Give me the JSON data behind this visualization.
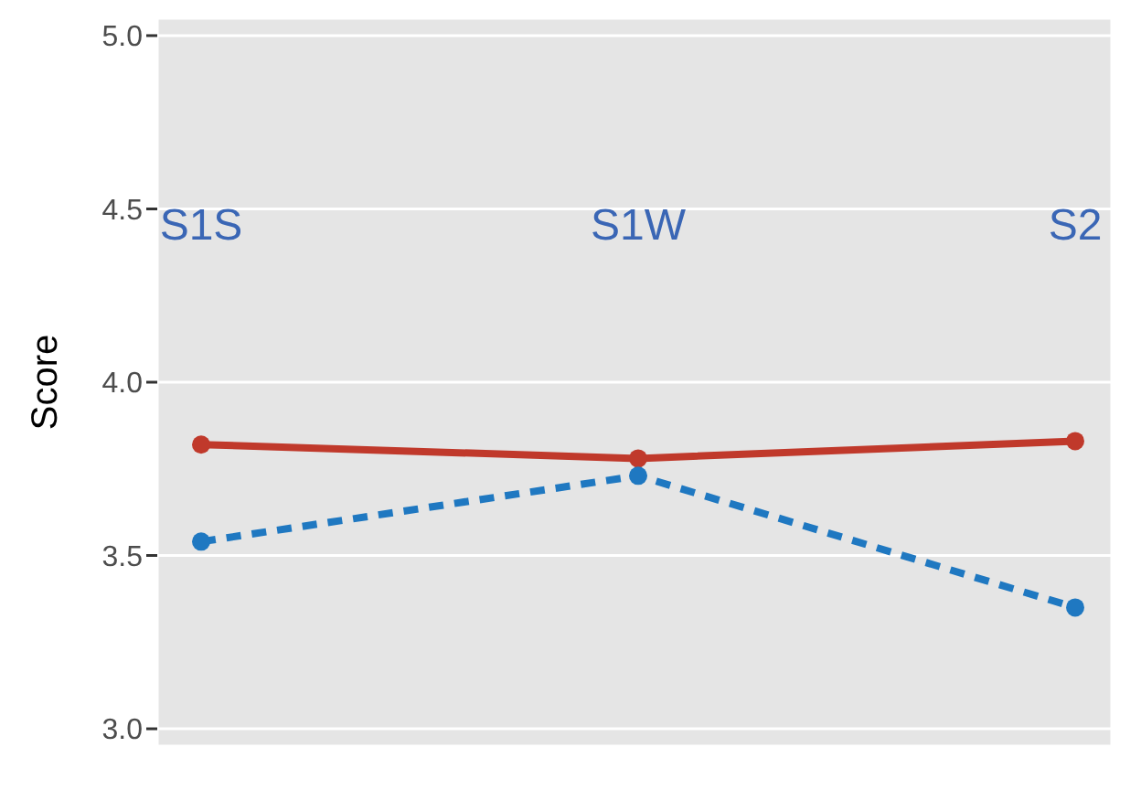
{
  "chart_data": {
    "type": "line",
    "ylabel": "Score",
    "categories": [
      null,
      null,
      null
    ],
    "series": [
      {
        "color": "#c0392b",
        "values": [
          3.82,
          3.78,
          3.83
        ],
        "line_style": "solid"
      },
      {
        "color": "#1f78c1",
        "values": [
          3.54,
          3.73,
          3.35
        ],
        "line_style": "dashed"
      }
    ],
    "annotations": [
      "S1S",
      "S1W",
      "S2"
    ],
    "ylim": [
      2.95,
      5.05
    ],
    "yticks": [
      {
        "value": 3,
        "label": "3.0"
      },
      3.5,
      {
        "value": 4,
        "label": "4.0"
      },
      4.5,
      {
        "value": 5,
        "label": "5.0"
      }
    ],
    "grid": true,
    "marker": "circle",
    "tick_labels": "y"
  }
}
